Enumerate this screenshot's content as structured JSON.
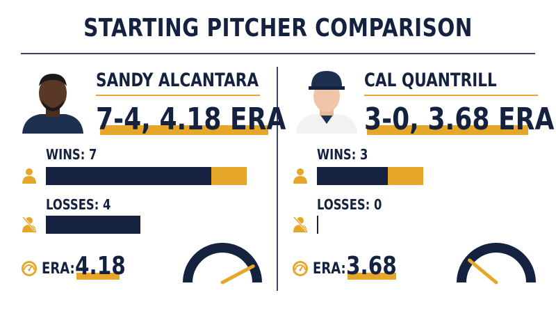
{
  "title": "STARTING PITCHER COMPARISON",
  "colors": {
    "navy": "#14223f",
    "gold": "#e5a62a"
  },
  "chart_data": {
    "type": "bar",
    "categories": [
      "WINS",
      "LOSSES"
    ],
    "scale_max": 9,
    "series": [
      {
        "name": "SANDY ALCANTARA",
        "values": [
          7,
          4
        ]
      },
      {
        "name": "CAL QUANTRILL",
        "values": [
          3,
          0
        ]
      }
    ]
  },
  "pitchers": [
    {
      "name": "SANDY ALCANTARA",
      "record": "7-4, 4.18 ERA",
      "wins_label": "WINS: 7",
      "losses_label": "LOSSES: 4",
      "wins": 7,
      "losses": 4,
      "era_label": "ERA:",
      "era_value": "4.18",
      "era": 4.18,
      "headshot_icon": "player-headshot-icon"
    },
    {
      "name": "CAL QUANTRILL",
      "record": "3-0, 3.68 ERA",
      "wins_label": "WINS: 3",
      "losses_label": "LOSSES: 0",
      "wins": 3,
      "losses": 0,
      "era_label": "ERA:",
      "era_value": "3.68",
      "era": 3.68,
      "headshot_icon": "player-headshot-icon"
    }
  ],
  "icons": {
    "wins": "person-icon",
    "losses": "person-crossed-icon",
    "era": "speedometer-icon"
  },
  "gauge": {
    "min": 2,
    "max": 6
  }
}
